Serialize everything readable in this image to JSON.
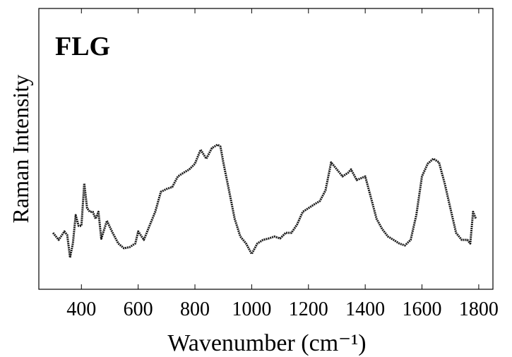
{
  "chart_data": {
    "type": "line",
    "annotation": "FLG",
    "xlabel": "Wavenumber (cm⁻¹)",
    "ylabel": "Raman Intensity",
    "xlim": [
      250,
      1850
    ],
    "ylim": [
      0,
      100
    ],
    "xticks": [
      400,
      600,
      800,
      1000,
      1200,
      1400,
      1600,
      1800
    ],
    "series": [
      {
        "color": "#1a1a1a",
        "x": [
          300,
          320,
          340,
          350,
          360,
          370,
          380,
          390,
          400,
          410,
          420,
          430,
          440,
          450,
          460,
          470,
          490,
          510,
          530,
          550,
          570,
          590,
          600,
          620,
          640,
          660,
          680,
          700,
          720,
          740,
          760,
          780,
          800,
          820,
          840,
          860,
          880,
          890,
          900,
          920,
          940,
          960,
          980,
          1000,
          1020,
          1040,
          1060,
          1080,
          1100,
          1120,
          1140,
          1160,
          1180,
          1200,
          1220,
          1240,
          1260,
          1280,
          1300,
          1320,
          1340,
          1350,
          1370,
          1400,
          1420,
          1440,
          1460,
          1480,
          1500,
          1520,
          1540,
          1560,
          1580,
          1600,
          1620,
          1640,
          1660,
          1680,
          1700,
          1720,
          1740,
          1760,
          1770,
          1780,
          1790
        ],
        "values": [
          20.1,
          17.6,
          20.6,
          19.3,
          11.3,
          16.3,
          26.4,
          22.6,
          22.6,
          37.7,
          28.9,
          27.6,
          27.6,
          25.1,
          27.6,
          18.0,
          24.4,
          20.1,
          16.3,
          14.6,
          15.0,
          16.3,
          20.6,
          17.6,
          22.6,
          27.6,
          34.7,
          35.7,
          36.4,
          40.2,
          41.5,
          42.7,
          44.7,
          49.7,
          46.5,
          50.3,
          51.5,
          50.8,
          45.2,
          35.2,
          25.1,
          18.8,
          16.3,
          12.6,
          16.3,
          17.6,
          18.1,
          18.8,
          18.1,
          20.1,
          20.1,
          23.1,
          27.6,
          28.9,
          30.2,
          31.4,
          35.2,
          45.2,
          42.7,
          40.2,
          41.5,
          42.7,
          38.9,
          40.2,
          32.7,
          25.1,
          21.4,
          18.8,
          17.6,
          16.3,
          15.6,
          17.6,
          26.4,
          40.2,
          44.7,
          46.5,
          45.2,
          37.7,
          28.9,
          20.1,
          17.6,
          17.6,
          16.3,
          27.6,
          25.1
        ]
      }
    ]
  }
}
